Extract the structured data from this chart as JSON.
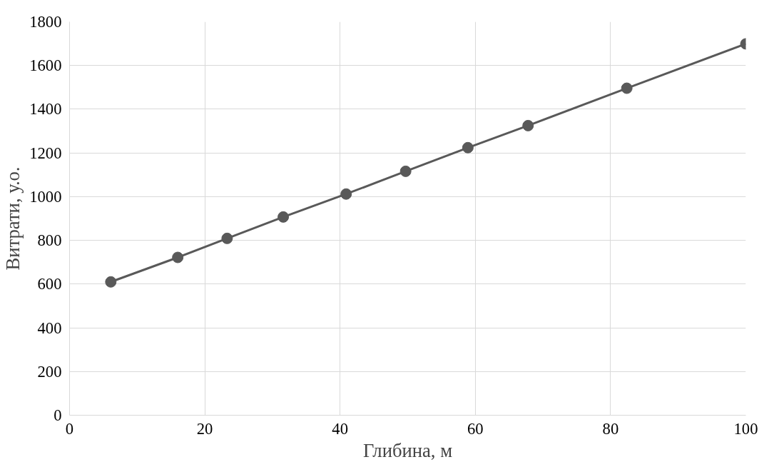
{
  "chart_data": {
    "type": "line",
    "xlabel": "Глибина, м",
    "ylabel": "Витрати, у.о.",
    "xlim": [
      0,
      100
    ],
    "xticks": [
      0,
      20,
      40,
      60,
      80,
      100
    ],
    "ylim": [
      0,
      1800
    ],
    "yticks": [
      0,
      200,
      400,
      600,
      800,
      1000,
      1200,
      1400,
      1600,
      1800
    ],
    "grid": true,
    "marker": "circle",
    "line_style": "solid",
    "series": [
      {
        "color": "#595959",
        "x": [
          6.1,
          16.0,
          23.3,
          31.6,
          40.9,
          49.7,
          58.9,
          67.8,
          82.4,
          100
        ],
        "values": [
          610,
          722,
          809,
          907,
          1012,
          1116,
          1224,
          1325,
          1496,
          1699
        ]
      }
    ]
  }
}
